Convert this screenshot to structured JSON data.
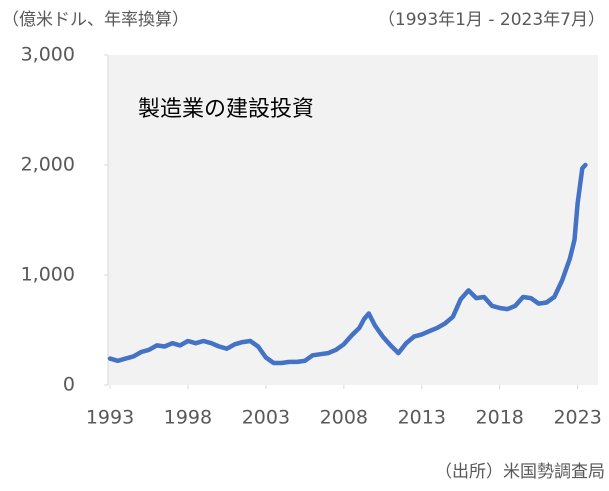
{
  "chart_data": {
    "type": "line",
    "unit_label": "（億米ドル、年率換算）",
    "period_label": "（1993年1月 - 2023年7月）",
    "title": "製造業の建設投資",
    "source": "（出所）米国勢調査局",
    "x": [
      1993.0,
      1993.5,
      1994.0,
      1994.5,
      1995.0,
      1995.5,
      1996.0,
      1996.5,
      1997.0,
      1997.5,
      1998.0,
      1998.5,
      1999.0,
      1999.5,
      2000.0,
      2000.5,
      2001.0,
      2001.5,
      2002.0,
      2002.5,
      2003.0,
      2003.5,
      2004.0,
      2004.5,
      2005.0,
      2005.5,
      2006.0,
      2006.5,
      2007.0,
      2007.5,
      2008.0,
      2008.5,
      2009.0,
      2009.3,
      2009.6,
      2010.0,
      2010.5,
      2011.0,
      2011.5,
      2012.0,
      2012.5,
      2013.0,
      2013.5,
      2014.0,
      2014.5,
      2015.0,
      2015.5,
      2016.0,
      2016.5,
      2017.0,
      2017.5,
      2018.0,
      2018.5,
      2019.0,
      2019.5,
      2020.0,
      2020.5,
      2021.0,
      2021.5,
      2022.0,
      2022.5,
      2022.8,
      2023.0,
      2023.3,
      2023.5
    ],
    "series": [
      {
        "name": "製造業の建設投資",
        "color": "#4472c4",
        "values": [
          240,
          220,
          240,
          260,
          300,
          320,
          360,
          350,
          380,
          360,
          400,
          380,
          400,
          380,
          350,
          330,
          370,
          390,
          400,
          350,
          250,
          200,
          200,
          210,
          210,
          220,
          270,
          280,
          290,
          320,
          370,
          450,
          520,
          600,
          650,
          540,
          440,
          360,
          290,
          380,
          440,
          460,
          490,
          520,
          560,
          620,
          780,
          860,
          790,
          800,
          720,
          700,
          690,
          720,
          800,
          790,
          740,
          750,
          800,
          950,
          1150,
          1320,
          1650,
          1970,
          2000
        ]
      }
    ],
    "xlim": [
      1993,
      2023.6
    ],
    "xticks": [
      1993,
      1998,
      2003,
      2008,
      2013,
      2018,
      2023
    ],
    "ylim": [
      0,
      3000
    ],
    "yticks": [
      0,
      {
        "value": 1000,
        "label": "1,000"
      },
      {
        "value": 2000,
        "label": "2,000"
      },
      {
        "value": 3000,
        "label": "3,000"
      }
    ]
  }
}
